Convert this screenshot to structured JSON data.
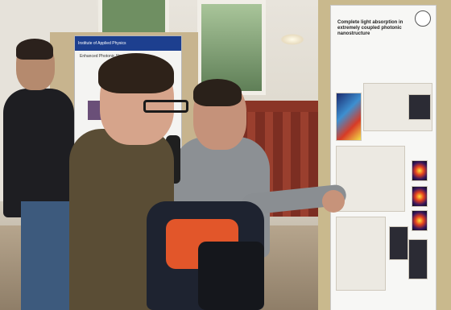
{
  "scene": {
    "left_poster": {
      "header": "Institute of Applied Physics",
      "title": "Enhanced Photonic Structures"
    },
    "right_poster": {
      "title": "Complete light absorption in extremely coupled photonic nanostructure"
    }
  }
}
